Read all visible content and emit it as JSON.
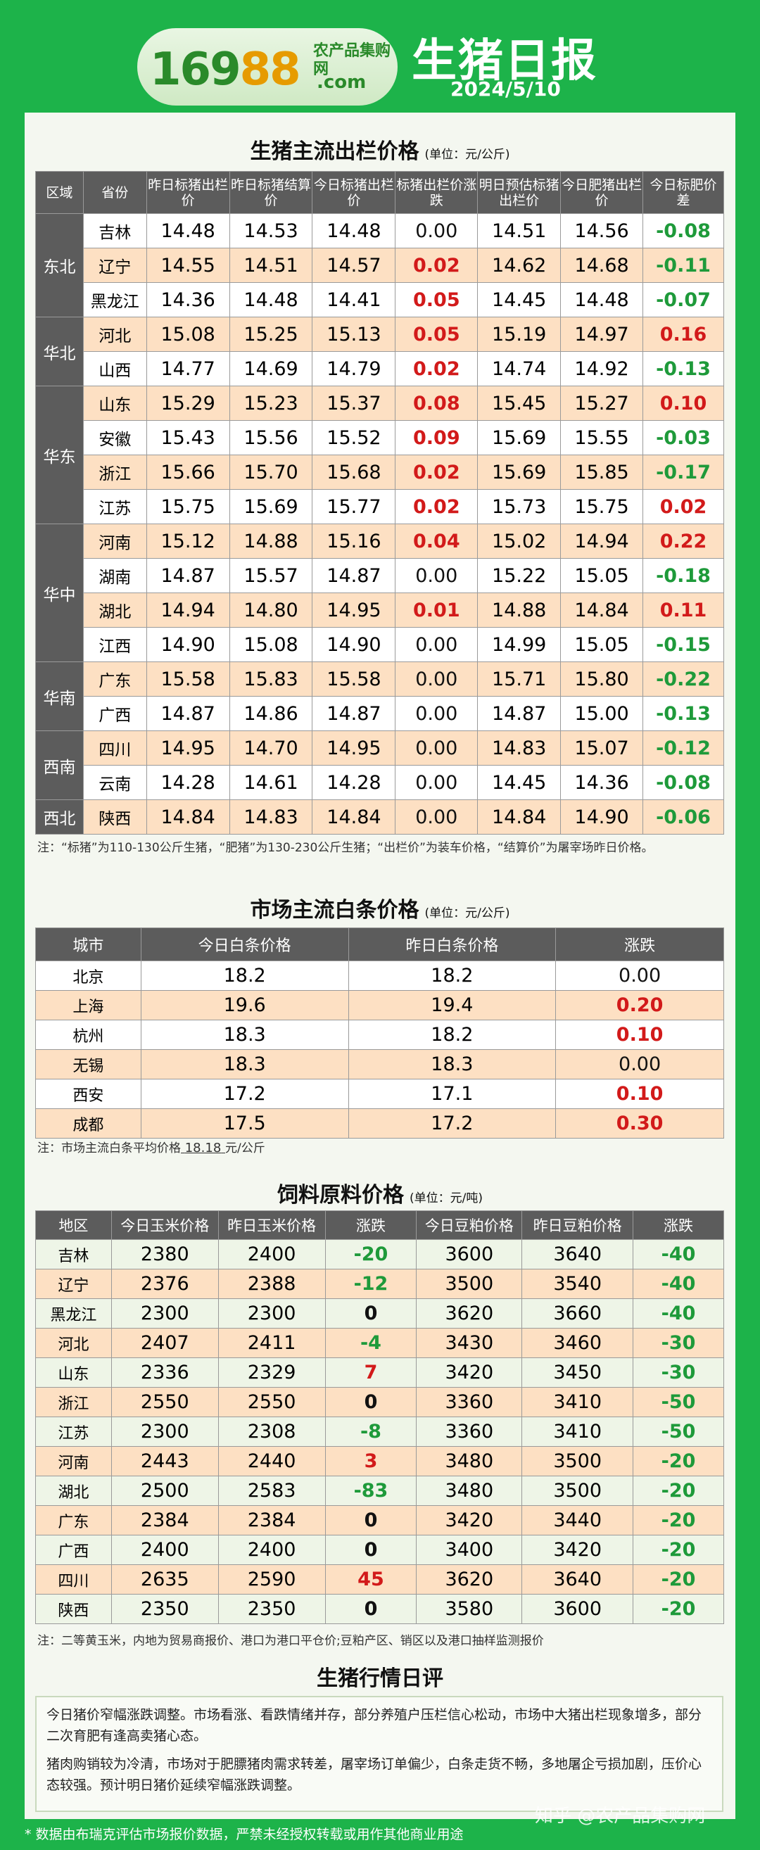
{
  "header": {
    "logo_number": "16988",
    "logo_cn": "农产品集购网",
    "logo_com": ".com",
    "title": "生猪日报",
    "date": "2024/5/10"
  },
  "hog": {
    "title": "生猪主流出栏价格",
    "unit": "(单位：元/公斤)",
    "headers": [
      "区域",
      "省份",
      "昨日标猪出栏价",
      "昨日标猪结算价",
      "今日标猪出栏价",
      "标猪出栏价涨跌",
      "明日预估标猪出栏价",
      "今日肥猪出栏价",
      "今日标肥价差"
    ],
    "groups": [
      {
        "region": "东北",
        "rows": [
          {
            "prov": "吉林",
            "v": [
              "14.48",
              "14.53",
              "14.48",
              "0.00",
              "14.51",
              "14.56",
              "-0.08"
            ]
          },
          {
            "prov": "辽宁",
            "v": [
              "14.55",
              "14.51",
              "14.57",
              "0.02",
              "14.62",
              "14.68",
              "-0.11"
            ]
          },
          {
            "prov": "黑龙江",
            "v": [
              "14.36",
              "14.48",
              "14.41",
              "0.05",
              "14.45",
              "14.48",
              "-0.07"
            ]
          }
        ]
      },
      {
        "region": "华北",
        "rows": [
          {
            "prov": "河北",
            "v": [
              "15.08",
              "15.25",
              "15.13",
              "0.05",
              "15.19",
              "14.97",
              "0.16"
            ]
          },
          {
            "prov": "山西",
            "v": [
              "14.77",
              "14.69",
              "14.79",
              "0.02",
              "14.74",
              "14.92",
              "-0.13"
            ]
          }
        ]
      },
      {
        "region": "华东",
        "rows": [
          {
            "prov": "山东",
            "v": [
              "15.29",
              "15.23",
              "15.37",
              "0.08",
              "15.45",
              "15.27",
              "0.10"
            ]
          },
          {
            "prov": "安徽",
            "v": [
              "15.43",
              "15.56",
              "15.52",
              "0.09",
              "15.69",
              "15.55",
              "-0.03"
            ]
          },
          {
            "prov": "浙江",
            "v": [
              "15.66",
              "15.70",
              "15.68",
              "0.02",
              "15.69",
              "15.85",
              "-0.17"
            ]
          },
          {
            "prov": "江苏",
            "v": [
              "15.75",
              "15.69",
              "15.77",
              "0.02",
              "15.73",
              "15.75",
              "0.02"
            ]
          }
        ]
      },
      {
        "region": "华中",
        "rows": [
          {
            "prov": "河南",
            "v": [
              "15.12",
              "14.88",
              "15.16",
              "0.04",
              "15.02",
              "14.94",
              "0.22"
            ]
          },
          {
            "prov": "湖南",
            "v": [
              "14.87",
              "15.57",
              "14.87",
              "0.00",
              "15.22",
              "15.05",
              "-0.18"
            ]
          },
          {
            "prov": "湖北",
            "v": [
              "14.94",
              "14.80",
              "14.95",
              "0.01",
              "14.88",
              "14.84",
              "0.11"
            ]
          },
          {
            "prov": "江西",
            "v": [
              "14.90",
              "15.08",
              "14.90",
              "0.00",
              "14.99",
              "15.05",
              "-0.15"
            ]
          }
        ]
      },
      {
        "region": "华南",
        "rows": [
          {
            "prov": "广东",
            "v": [
              "15.58",
              "15.83",
              "15.58",
              "0.00",
              "15.71",
              "15.80",
              "-0.22"
            ]
          },
          {
            "prov": "广西",
            "v": [
              "14.87",
              "14.86",
              "14.87",
              "0.00",
              "14.87",
              "15.00",
              "-0.13"
            ]
          }
        ]
      },
      {
        "region": "西南",
        "rows": [
          {
            "prov": "四川",
            "v": [
              "14.95",
              "14.70",
              "14.95",
              "0.00",
              "14.83",
              "15.07",
              "-0.12"
            ]
          },
          {
            "prov": "云南",
            "v": [
              "14.28",
              "14.61",
              "14.28",
              "0.00",
              "14.45",
              "14.36",
              "-0.08"
            ]
          }
        ]
      },
      {
        "region": "西北",
        "rows": [
          {
            "prov": "陕西",
            "v": [
              "14.84",
              "14.83",
              "14.84",
              "0.00",
              "14.84",
              "14.90",
              "-0.06"
            ]
          }
        ]
      }
    ],
    "note": "注：“标猪”为110-130公斤生猪，“肥猪”为130-230公斤生猪；“出栏价”为装车价格，“结算价”为屠宰场昨日价格。"
  },
  "carcass": {
    "title": "市场主流白条价格",
    "unit": "(单位：元/公斤)",
    "headers": [
      "城市",
      "今日白条价格",
      "昨日白条价格",
      "涨跌"
    ],
    "rows": [
      [
        "北京",
        "18.2",
        "18.2",
        "0.00"
      ],
      [
        "上海",
        "19.6",
        "19.4",
        "0.20"
      ],
      [
        "杭州",
        "18.3",
        "18.2",
        "0.10"
      ],
      [
        "无锡",
        "18.3",
        "18.3",
        "0.00"
      ],
      [
        "西安",
        "17.2",
        "17.1",
        "0.10"
      ],
      [
        "成都",
        "17.5",
        "17.2",
        "0.30"
      ]
    ],
    "note_prefix": "注：市场主流白条平均价格",
    "note_value": "18.18",
    "note_suffix": "元/公斤"
  },
  "feed": {
    "title": "饲料原料价格",
    "unit": "(单位：元/吨)",
    "headers": [
      "地区",
      "今日玉米价格",
      "昨日玉米价格",
      "涨跌",
      "今日豆粕价格",
      "昨日豆粕价格",
      "涨跌"
    ],
    "rows": [
      [
        "吉林",
        "2380",
        "2400",
        "-20",
        "3600",
        "3640",
        "-40"
      ],
      [
        "辽宁",
        "2376",
        "2388",
        "-12",
        "3500",
        "3540",
        "-40"
      ],
      [
        "黑龙江",
        "2300",
        "2300",
        "0",
        "3620",
        "3660",
        "-40"
      ],
      [
        "河北",
        "2407",
        "2411",
        "-4",
        "3430",
        "3460",
        "-30"
      ],
      [
        "山东",
        "2336",
        "2329",
        "7",
        "3420",
        "3450",
        "-30"
      ],
      [
        "浙江",
        "2550",
        "2550",
        "0",
        "3360",
        "3410",
        "-50"
      ],
      [
        "江苏",
        "2300",
        "2308",
        "-8",
        "3360",
        "3410",
        "-50"
      ],
      [
        "河南",
        "2443",
        "2440",
        "3",
        "3480",
        "3500",
        "-20"
      ],
      [
        "湖北",
        "2500",
        "2583",
        "-83",
        "3480",
        "3500",
        "-20"
      ],
      [
        "广东",
        "2384",
        "2384",
        "0",
        "3420",
        "3440",
        "-20"
      ],
      [
        "广西",
        "2400",
        "2400",
        "0",
        "3400",
        "3420",
        "-20"
      ],
      [
        "四川",
        "2635",
        "2590",
        "45",
        "3620",
        "3640",
        "-20"
      ],
      [
        "陕西",
        "2350",
        "2350",
        "0",
        "3580",
        "3600",
        "-20"
      ]
    ],
    "note": "注：二等黄玉米，内地为贸易商报价、港口为港口平仓价;豆粕产区、销区以及港口抽样监测报价"
  },
  "comment": {
    "title": "生猪行情日评",
    "p1": "今日猪价窄幅涨跌调整。市场看涨、看跌情绪并存，部分养殖户压栏信心松动，市场中大猪出栏现象增多，部分二次育肥有逢高卖猪心态。",
    "p2": "猪肉购销较为冷清，市场对于肥膘猪肉需求转差，屠宰场订单偏少，白条走货不畅，多地屠企亏损加剧，压价心态较强。预计明日猪价延续窄幅涨跌调整。"
  },
  "watermark": "知乎 @农产品集购网",
  "footer": "* 数据由布瑞克评估市场报价数据，严禁未经授权转载或用作其他商业用途"
}
